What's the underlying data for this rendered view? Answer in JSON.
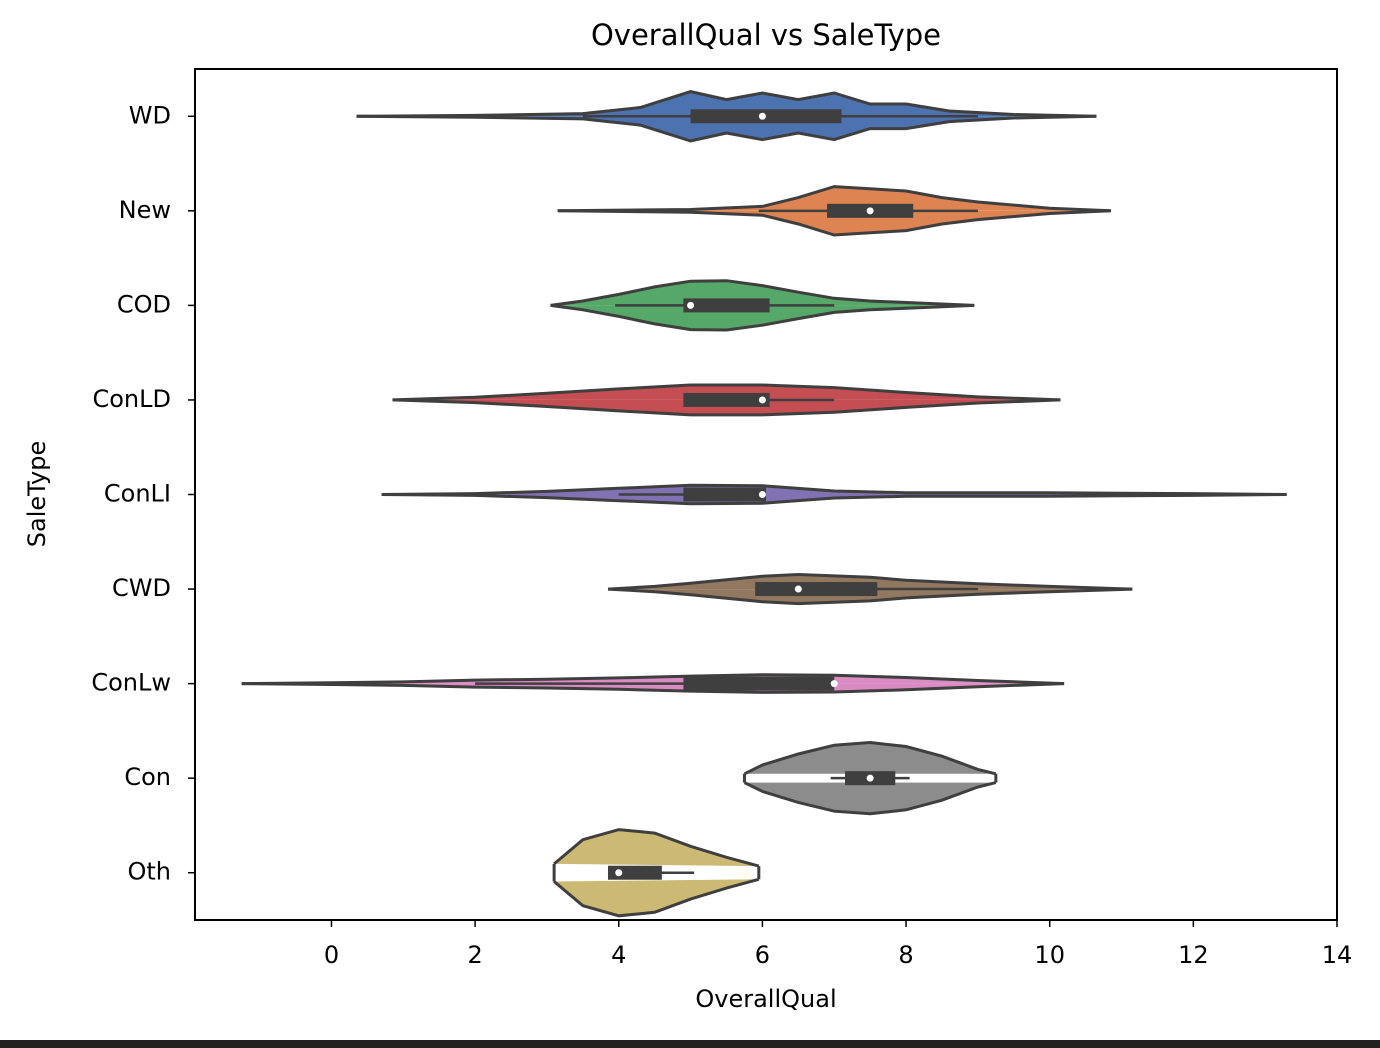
{
  "chart_data": {
    "type": "violin",
    "title": "OverallQual vs SaleType",
    "x_label": "OverallQual",
    "y_label": "SaleType",
    "xlim": [
      -1.9,
      14.0
    ],
    "xticks": [
      0,
      2,
      4,
      6,
      8,
      10,
      12,
      14
    ],
    "series": [
      {
        "name": "WD",
        "color": "#4c72b0",
        "q1": 5,
        "median": 6,
        "q3": 7.1,
        "whisker_low": 3.5,
        "whisker_high": 9,
        "kde_x": [
          0.35,
          2,
          3.5,
          4.3,
          5,
          5.5,
          6,
          6.5,
          7,
          7.5,
          8,
          8.6,
          9.5,
          10.65
        ],
        "kde": [
          0,
          0.02,
          0.06,
          0.2,
          0.56,
          0.38,
          0.53,
          0.38,
          0.53,
          0.28,
          0.28,
          0.12,
          0.04,
          0
        ]
      },
      {
        "name": "New",
        "color": "#dd8452",
        "q1": 6.9,
        "median": 7.5,
        "q3": 8.1,
        "whisker_low": 5.95,
        "whisker_high": 9,
        "kde_x": [
          3.15,
          5,
          6,
          6.5,
          7,
          7.5,
          8,
          8.5,
          9,
          10,
          10.85
        ],
        "kde": [
          0,
          0.03,
          0.1,
          0.3,
          0.55,
          0.5,
          0.45,
          0.3,
          0.2,
          0.06,
          0
        ]
      },
      {
        "name": "COD",
        "color": "#55a868",
        "q1": 4.9,
        "median": 5,
        "q3": 6.1,
        "whisker_low": 3.95,
        "whisker_high": 7,
        "kde_x": [
          3.05,
          3.5,
          4,
          4.5,
          5,
          5.5,
          6,
          6.5,
          7,
          7.5,
          8.95
        ],
        "kde": [
          0,
          0.1,
          0.25,
          0.42,
          0.55,
          0.56,
          0.45,
          0.3,
          0.16,
          0.1,
          0
        ]
      },
      {
        "name": "ConLD",
        "color": "#c44e52",
        "q1": 4.9,
        "median": 6,
        "q3": 6.1,
        "whisker_low": 4.9,
        "whisker_high": 7,
        "kde_x": [
          0.85,
          2,
          3,
          4,
          5,
          6,
          7,
          8,
          9,
          10.15
        ],
        "kde": [
          0,
          0.06,
          0.15,
          0.25,
          0.34,
          0.34,
          0.28,
          0.17,
          0.07,
          0
        ]
      },
      {
        "name": "ConLI",
        "color": "#8172b3",
        "q1": 4.9,
        "median": 6,
        "q3": 6.05,
        "whisker_low": 4,
        "whisker_high": 6.05,
        "kde_x": [
          0.7,
          2,
          3,
          4,
          5,
          6,
          7,
          8,
          9,
          10,
          11,
          12,
          13.3
        ],
        "kde": [
          0,
          0.02,
          0.07,
          0.14,
          0.21,
          0.2,
          0.08,
          0.04,
          0.04,
          0.04,
          0.03,
          0.02,
          0
        ]
      },
      {
        "name": "CWD",
        "color": "#937860",
        "q1": 5.9,
        "median": 6.5,
        "q3": 7.6,
        "whisker_low": 5.9,
        "whisker_high": 9,
        "kde_x": [
          3.85,
          4.5,
          5,
          6,
          6.5,
          7,
          7.5,
          8,
          9,
          10,
          11.15
        ],
        "kde": [
          0,
          0.06,
          0.13,
          0.29,
          0.33,
          0.3,
          0.27,
          0.2,
          0.12,
          0.06,
          0
        ]
      },
      {
        "name": "ConLw",
        "color": "#da8bc3",
        "q1": 4.9,
        "median": 7,
        "q3": 7,
        "whisker_low": 2,
        "whisker_high": 7,
        "kde_x": [
          -1.25,
          0,
          1,
          2,
          3,
          4,
          5,
          6,
          7,
          8,
          9,
          10.2
        ],
        "kde": [
          0,
          0.02,
          0.04,
          0.08,
          0.1,
          0.13,
          0.17,
          0.2,
          0.19,
          0.14,
          0.07,
          0
        ]
      },
      {
        "name": "Con",
        "color": "#8c8c8c",
        "q1": 7.15,
        "median": 7.5,
        "q3": 7.85,
        "whisker_low": 6.95,
        "whisker_high": 8.05,
        "kde_x": [
          5.75,
          6,
          6.5,
          7,
          7.5,
          8,
          8.5,
          9,
          9.25
        ],
        "kde": [
          0.1,
          0.3,
          0.55,
          0.75,
          0.81,
          0.72,
          0.5,
          0.2,
          0.1
        ]
      },
      {
        "name": "Oth",
        "color": "#ccb974",
        "q1": 3.85,
        "median": 4,
        "q3": 4.6,
        "whisker_low": 3.85,
        "whisker_high": 5.05,
        "kde_x": [
          3.1,
          3.5,
          4,
          4.5,
          5,
          5.5,
          5.95
        ],
        "kde": [
          0.2,
          0.75,
          0.98,
          0.9,
          0.6,
          0.35,
          0.15
        ]
      }
    ]
  }
}
